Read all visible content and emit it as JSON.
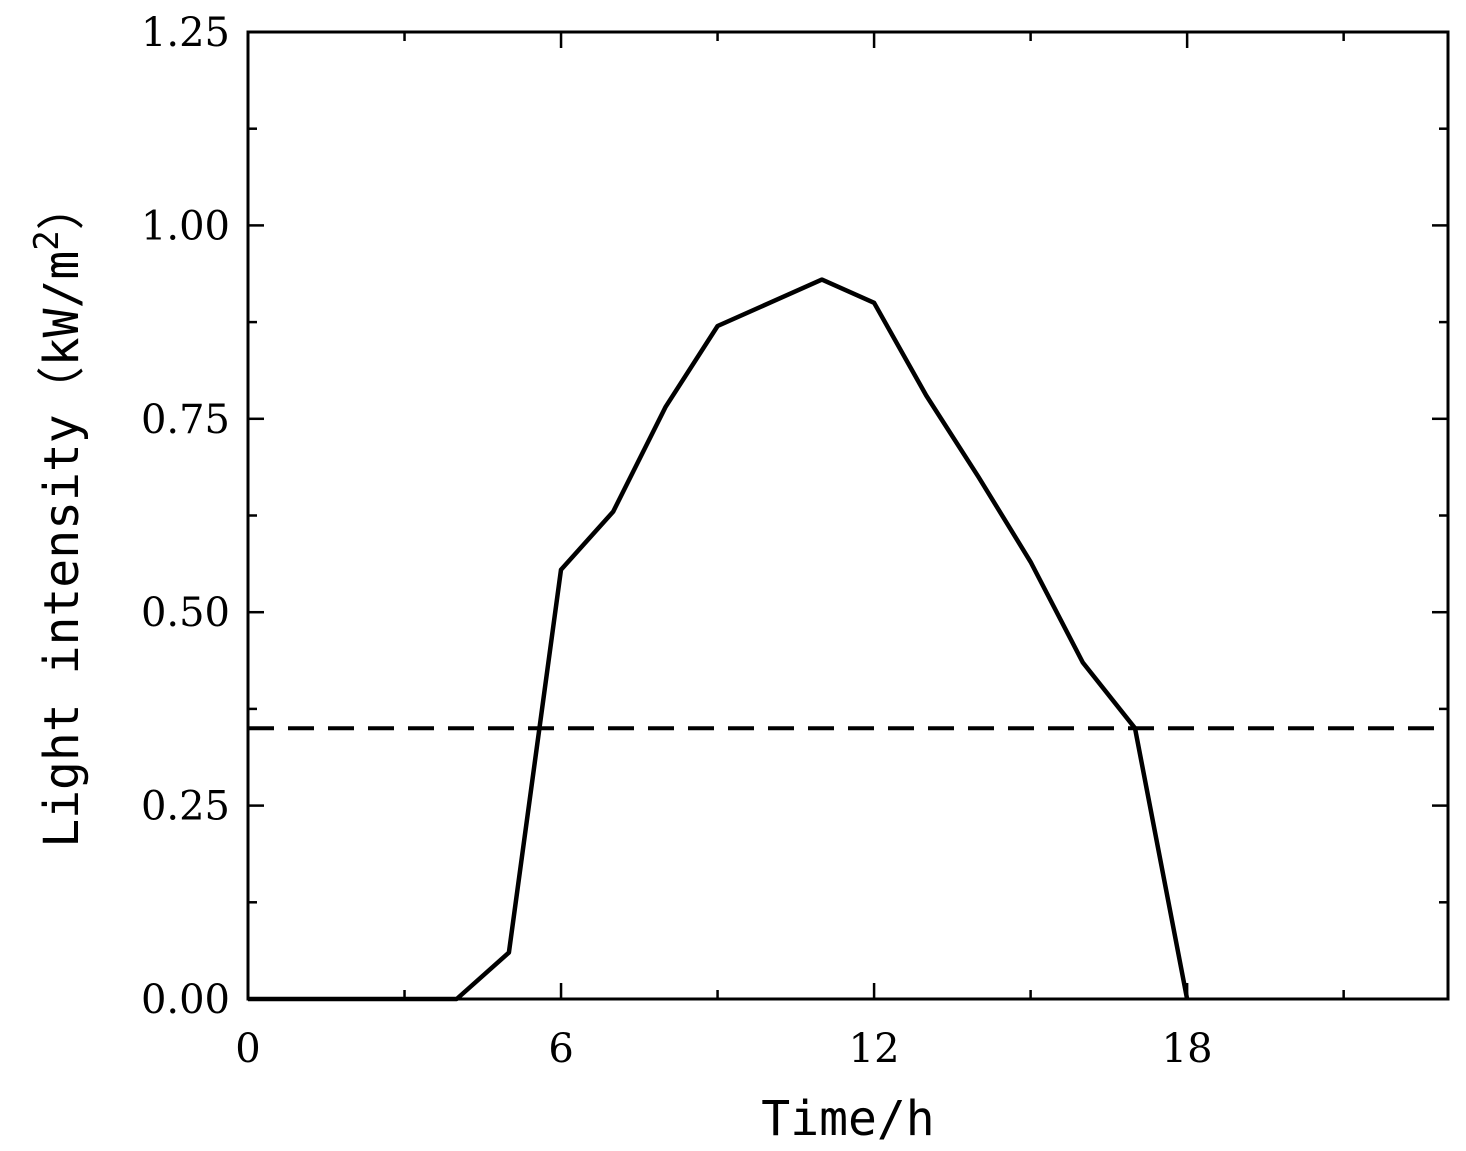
{
  "chart_data": {
    "type": "line",
    "xlabel": "Time/h",
    "ylabel": {
      "prefix": "Light intensity（kW/m",
      "superscript": "2",
      "suffix": "）"
    },
    "xlim": [
      0,
      23
    ],
    "ylim": [
      0,
      1.25
    ],
    "x_ticks": [
      0,
      6,
      12,
      18
    ],
    "x_tick_labels": [
      "0",
      "6",
      "12",
      "18"
    ],
    "x_minor_ticks": [
      3,
      9,
      15,
      21
    ],
    "y_ticks": [
      0,
      0.25,
      0.5,
      0.75,
      1.0,
      1.25
    ],
    "y_tick_labels": [
      "0.00",
      "0.25",
      "0.50",
      "0.75",
      "1.00",
      "1.25"
    ],
    "y_minor_ticks": [
      0.125,
      0.375,
      0.625,
      0.875,
      1.125
    ],
    "grid": false,
    "series": [
      {
        "style": "solid",
        "color": "#000000",
        "x": [
          0,
          1,
          2,
          3,
          4,
          5,
          6,
          7,
          8,
          9,
          10,
          11,
          12,
          13,
          14,
          15,
          16,
          17,
          18
        ],
        "y": [
          0,
          0,
          0,
          0,
          0,
          0.06,
          0.555,
          0.63,
          0.765,
          0.87,
          0.9,
          0.93,
          0.9,
          0.78,
          0.675,
          0.565,
          0.435,
          0.35,
          0
        ]
      }
    ],
    "reference_lines": [
      {
        "orientation": "horizontal",
        "y": 0.35,
        "style": "dashed",
        "color": "#000000"
      }
    ]
  }
}
